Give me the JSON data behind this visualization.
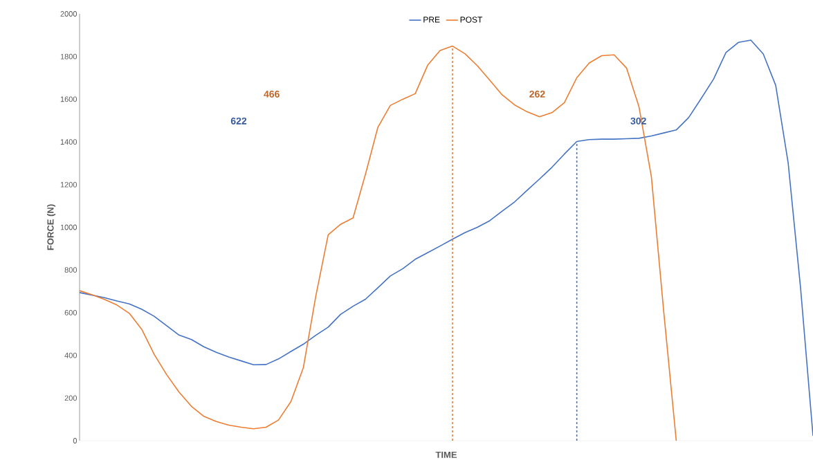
{
  "chart_data": {
    "type": "line",
    "xlabel": "TIME",
    "ylabel": "FORCE (N)",
    "ylim": [
      0,
      2000
    ],
    "yticks": [
      0,
      200,
      400,
      600,
      800,
      1000,
      1200,
      1400,
      1600,
      1800,
      2000
    ],
    "legend": "top",
    "categories": [
      null,
      null,
      null,
      null,
      null,
      null,
      null,
      null,
      null,
      null,
      null,
      null,
      null,
      null,
      null,
      null,
      null,
      null,
      null,
      null,
      null,
      null,
      null,
      null,
      null,
      null,
      null,
      null,
      null,
      null,
      null,
      null,
      null,
      null,
      null,
      null,
      null,
      null,
      null,
      null,
      null,
      null,
      null,
      null,
      null,
      null,
      null,
      null,
      null,
      null,
      null,
      null,
      null,
      null,
      null,
      null,
      null,
      null,
      null,
      null
    ],
    "series": [
      {
        "name": "PRE",
        "color": "#4472c4",
        "values": [
          694,
          682,
          670,
          655,
          641,
          616,
          583,
          539,
          495,
          474,
          440,
          414,
          392,
          374,
          356,
          357,
          383,
          418,
          452,
          494,
          532,
          592,
          630,
          663,
          717,
          772,
          806,
          850,
          881,
          912,
          944,
          975,
          1000,
          1031,
          1076,
          1119,
          1173,
          1226,
          1281,
          1343,
          1402,
          1411,
          1413,
          1413,
          1415,
          1417,
          1428,
          1442,
          1456,
          1514,
          1603,
          1694,
          1819,
          1866,
          1877,
          1812,
          1665,
          1303,
          716,
          23
        ]
      },
      {
        "name": "POST",
        "color": "#ed7d31",
        "values": [
          703,
          684,
          662,
          636,
          597,
          522,
          405,
          310,
          228,
          161,
          114,
          90,
          73,
          63,
          56,
          63,
          97,
          183,
          342,
          676,
          965,
          1014,
          1044,
          1249,
          1469,
          1571,
          1600,
          1626,
          1759,
          1828,
          1849,
          1813,
          1757,
          1689,
          1620,
          1573,
          1541,
          1518,
          1537,
          1584,
          1701,
          1770,
          1804,
          1808,
          1746,
          1565,
          1236,
          600,
          0,
          null,
          null,
          null,
          null,
          null,
          null,
          null,
          null,
          null,
          null,
          null
        ]
      }
    ],
    "annotations": [
      "622",
      "466",
      "302",
      "262"
    ]
  }
}
